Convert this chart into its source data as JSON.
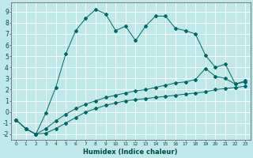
{
  "xlabel": "Humidex (Indice chaleur)",
  "background_color": "#c0e8e8",
  "grid_color": "#b0d8d8",
  "line_color": "#006868",
  "xlim": [
    -0.5,
    23.5
  ],
  "ylim": [
    -2.5,
    9.8
  ],
  "xticks": [
    0,
    1,
    2,
    3,
    4,
    5,
    6,
    7,
    8,
    9,
    10,
    11,
    12,
    13,
    14,
    15,
    16,
    17,
    18,
    19,
    20,
    21,
    22,
    23
  ],
  "yticks": [
    -2,
    -1,
    0,
    1,
    2,
    3,
    4,
    5,
    6,
    7,
    8,
    9
  ],
  "series1_x": [
    0,
    1,
    2,
    3,
    4,
    5,
    6,
    7,
    8,
    9,
    10,
    11,
    12,
    13,
    14,
    15,
    16,
    17,
    18,
    19,
    20,
    21,
    22,
    23
  ],
  "series1_y": [
    -0.7,
    -1.5,
    -2.0,
    -1.9,
    -1.5,
    -1.0,
    -0.5,
    0.0,
    0.3,
    0.6,
    0.8,
    1.0,
    1.1,
    1.2,
    1.3,
    1.4,
    1.5,
    1.6,
    1.7,
    1.8,
    2.0,
    2.1,
    2.2,
    2.3
  ],
  "series2_x": [
    0,
    1,
    2,
    3,
    4,
    5,
    6,
    7,
    8,
    9,
    10,
    11,
    12,
    13,
    14,
    15,
    16,
    17,
    18,
    19,
    20,
    21,
    22,
    23
  ],
  "series2_y": [
    -0.7,
    -1.5,
    -2.0,
    -1.5,
    -0.8,
    -0.2,
    0.3,
    0.7,
    1.0,
    1.3,
    1.5,
    1.7,
    1.9,
    2.0,
    2.2,
    2.4,
    2.6,
    2.7,
    2.9,
    3.9,
    3.2,
    3.0,
    2.5,
    2.7
  ],
  "series3_x": [
    0,
    1,
    2,
    3,
    4,
    5,
    6,
    7,
    8,
    9,
    10,
    11,
    12,
    13,
    14,
    15,
    16,
    17,
    18,
    19,
    20,
    21,
    22,
    23
  ],
  "series3_y": [
    -0.7,
    -1.5,
    -2.0,
    -0.1,
    2.2,
    5.2,
    7.3,
    8.4,
    9.2,
    8.8,
    7.3,
    7.7,
    6.4,
    7.7,
    8.6,
    8.6,
    7.5,
    7.3,
    7.0,
    5.1,
    4.0,
    4.3,
    2.5,
    2.8
  ]
}
